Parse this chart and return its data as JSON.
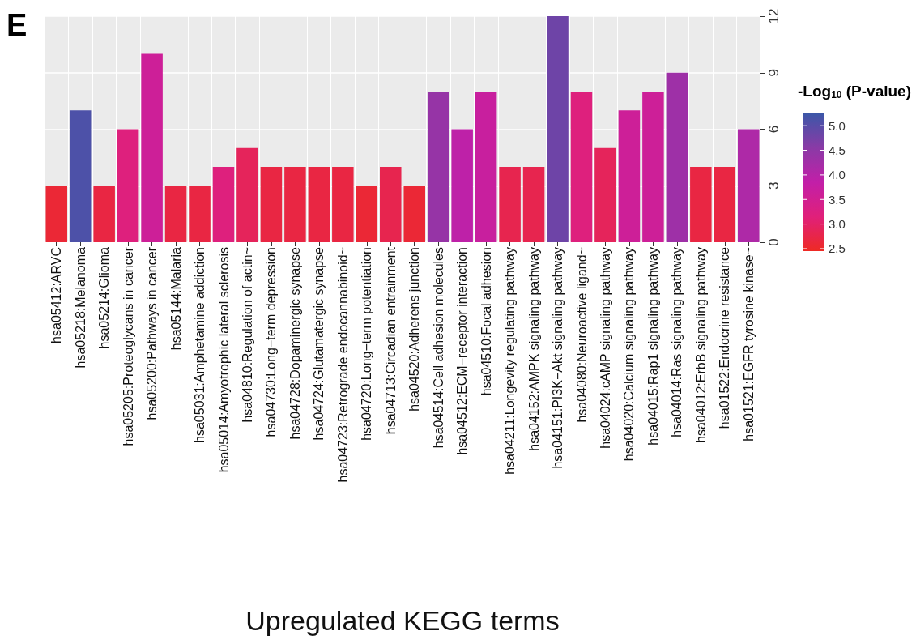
{
  "chart_data": {
    "type": "bar",
    "xlabel": "Upregulated KEGG terms",
    "clabel": "-Log$_{10}$ (P-value)",
    "annotations": [
      "E"
    ],
    "categories": [
      "hsa05412:ARVC",
      "hsa05218:Melanoma",
      "hsa05214:Glioma",
      "hsa05205:Proteoglycans in cancer",
      "hsa05200:Pathways in cancer",
      "hsa05144:Malaria",
      "hsa05031:Amphetamine addiction",
      "hsa05014:Amyotrophic lateral sclerosis",
      "hsa04810:Regulation of actin~",
      "hsa04730:Long−term depression",
      "hsa04728:Dopaminergic synapse",
      "hsa04724:Glutamatergic synapse",
      "hsa04723:Retrograde endocannabinoid~",
      "hsa04720:Long−term potentiation",
      "hsa04713:Circadian entrainment",
      "hsa04520:Adherens junction",
      "hsa04514:Cell adhesion molecules",
      "hsa04512:ECM−receptor interaction",
      "hsa04510:Focal adhesion",
      "hsa04211:Longevity regulating pathway",
      "hsa04152:AMPK signaling pathway",
      "hsa04151:PI3K−Akt signaling pathway",
      "hsa04080:Neuroactive ligand~",
      "hsa04024:cAMP signaling pathway",
      "hsa04020:Calcium signaling pathway",
      "hsa04015:Rap1 signaling pathway",
      "hsa04014:Ras signaling pathway",
      "hsa04012:ErbB signaling pathway",
      "hsa01522:Endocrine resistance",
      "hsa01521:EGFR tyrosine kinase~"
    ],
    "values": [
      3,
      7,
      3,
      6,
      10,
      3,
      3,
      4,
      5,
      4,
      4,
      4,
      4,
      3,
      4,
      3,
      8,
      6,
      8,
      4,
      4,
      12,
      8,
      5,
      7,
      8,
      9,
      4,
      4,
      6
    ],
    "cvalues": [
      2.6,
      5.1,
      2.7,
      3.2,
      3.6,
      2.7,
      2.7,
      3.2,
      2.9,
      2.7,
      2.7,
      2.7,
      2.7,
      2.6,
      2.8,
      2.6,
      4.4,
      3.9,
      3.7,
      2.8,
      2.8,
      4.8,
      3.2,
      2.9,
      3.6,
      3.6,
      4.3,
      2.7,
      2.7,
      4.1
    ],
    "clim": [
      2.45,
      5.25
    ],
    "cticks": [
      {
        "value": 2.5,
        "label": "2.5"
      },
      {
        "value": 3,
        "label": "3.0"
      },
      {
        "value": 3.5,
        "label": "3.5"
      },
      {
        "value": 4,
        "label": "4.0"
      },
      {
        "value": 4.5,
        "label": "4.5"
      },
      {
        "value": 5,
        "label": "5.0"
      }
    ],
    "ylim": [
      0,
      12
    ],
    "yticks": [
      0,
      3,
      6,
      9,
      12
    ],
    "grid": true
  }
}
